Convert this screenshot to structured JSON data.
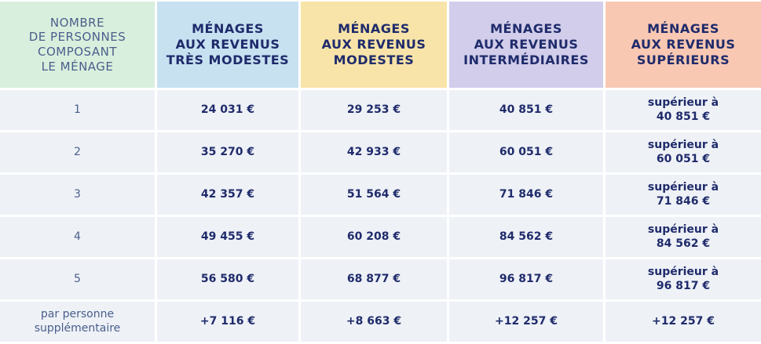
{
  "table": {
    "header": [
      "NOMBRE\nDE PERSONNES\nCOMPOSANT\nLE MÉNAGE",
      "MÉNAGES\nAUX REVENUS\nTRÈS MODESTES",
      "MÉNAGES\nAUX REVENUS\nMODESTES",
      "MÉNAGES\nAUX REVENUS\nINTERMÉDIAIRES",
      "MÉNAGES\nAUX REVENUS\nSUPÉRIEURS"
    ],
    "rows": [
      [
        "1",
        "24 031 €",
        "29 253 €",
        "40 851 €",
        "supérieur à\n40 851 €"
      ],
      [
        "2",
        "35 270 €",
        "42 933 €",
        "60 051 €",
        "supérieur à\n60 051 €"
      ],
      [
        "3",
        "42 357 €",
        "51 564 €",
        "71 846 €",
        "supérieur à\n71 846 €"
      ],
      [
        "4",
        "49 455 €",
        "60 208 €",
        "84 562 €",
        "supérieur à\n84 562 €"
      ],
      [
        "5",
        "56 580 €",
        "68 877 €",
        "96 817 €",
        "supérieur à\n96 817 €"
      ],
      [
        "par personne\nsupplémentaire",
        "+7 116 €",
        "+8 663 €",
        "+12 257 €",
        "+12 257 €"
      ]
    ]
  }
}
